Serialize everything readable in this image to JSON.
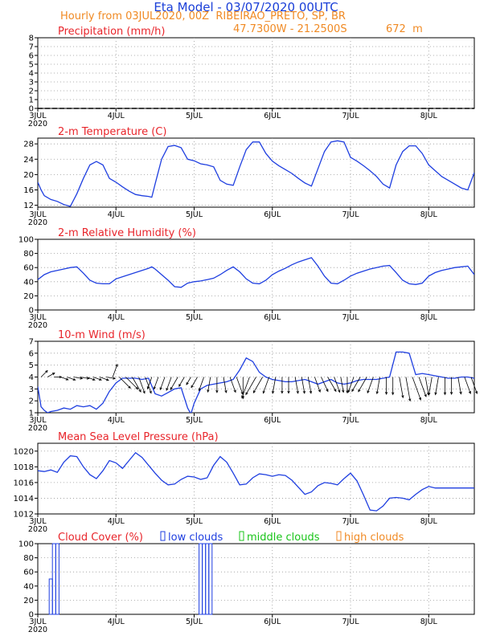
{
  "header": {
    "title": "Eta Model - 03/07/2020 00UTC",
    "subtitle": "Hourly from 03JUL2020, 00Z  RIBEIRAO_PRETO, SP, BR",
    "coordinates": "47.7300W - 21.2500S",
    "elevation": "672  m"
  },
  "x_axis": {
    "ticks": [
      {
        "hour": 0,
        "label": "3JUL",
        "sub": "2020"
      },
      {
        "hour": 24,
        "label": "4JUL",
        "sub": ""
      },
      {
        "hour": 48,
        "label": "5JUL",
        "sub": ""
      },
      {
        "hour": 72,
        "label": "6JUL",
        "sub": ""
      },
      {
        "hour": 96,
        "label": "7JUL",
        "sub": ""
      },
      {
        "hour": 120,
        "label": "8JUL",
        "sub": ""
      }
    ],
    "range_hours": [
      0,
      134
    ]
  },
  "colors": {
    "line": "#1f3fe0",
    "title": "#e8252b",
    "orange": "#f08a24",
    "green": "#19c419",
    "blue_legend": "#1f3fe0",
    "grid": "#999999",
    "zero_line": "#000000",
    "wind_arrow": "#000000"
  },
  "chart_data": [
    {
      "type": "line",
      "name": "precipitation",
      "title": "Precipitation (mm/h)",
      "ylim": [
        0,
        8
      ],
      "yticks": [
        0,
        1,
        2,
        3,
        4,
        5,
        6,
        7,
        8
      ],
      "x": [
        0,
        134
      ],
      "values": [
        0,
        0
      ]
    },
    {
      "type": "line",
      "name": "temperature",
      "title": "2-m Temperature (C)",
      "ylim": [
        11.5,
        29.5
      ],
      "yticks": [
        12,
        16,
        20,
        24,
        28
      ],
      "x": [
        0,
        1,
        2,
        4,
        6,
        8,
        10,
        12,
        14,
        16,
        18,
        20,
        22,
        24,
        26,
        28,
        30,
        32,
        34,
        35,
        36,
        38,
        40,
        42,
        44,
        46,
        48,
        50,
        52,
        54,
        56,
        58,
        60,
        62,
        64,
        66,
        68,
        70,
        72,
        74,
        76,
        78,
        80,
        82,
        84,
        86,
        88,
        90,
        92,
        94,
        96,
        98,
        100,
        102,
        104,
        106,
        108,
        110,
        112,
        114,
        116,
        118,
        120,
        122,
        124,
        126,
        128,
        130,
        132,
        134
      ],
      "values": [
        18,
        16,
        14.5,
        13.5,
        13,
        12.2,
        11.7,
        15,
        19,
        22.5,
        23.4,
        22.5,
        19,
        18,
        16.8,
        15.7,
        14.8,
        14.5,
        14.3,
        14.1,
        17.5,
        24,
        27.3,
        27.6,
        27,
        24,
        23.6,
        22.8,
        22.5,
        22,
        18.5,
        17.5,
        17.2,
        22,
        26.5,
        28.5,
        28.5,
        25.5,
        23.5,
        22.3,
        21.3,
        20.3,
        19,
        17.8,
        17,
        21.5,
        26,
        28.5,
        28.8,
        28.5,
        24.5,
        23.5,
        22.3,
        21,
        19.5,
        17.5,
        16.5,
        22.5,
        26,
        27.5,
        27.5,
        25.5,
        22.5,
        21,
        19.5,
        18.5,
        17.5,
        16.5,
        16,
        20.5
      ]
    },
    {
      "type": "line",
      "name": "relative_humidity",
      "title": "2-m Relative Humidity (%)",
      "ylim": [
        0,
        100
      ],
      "yticks": [
        0,
        20,
        40,
        60,
        80,
        100
      ],
      "x": [
        0,
        2,
        4,
        6,
        8,
        10,
        12,
        14,
        16,
        18,
        20,
        22,
        24,
        26,
        28,
        30,
        32,
        34,
        35,
        36,
        38,
        40,
        42,
        44,
        46,
        48,
        50,
        52,
        54,
        56,
        58,
        60,
        62,
        64,
        66,
        68,
        70,
        72,
        74,
        76,
        78,
        80,
        82,
        84,
        86,
        88,
        90,
        92,
        94,
        96,
        98,
        100,
        102,
        104,
        106,
        108,
        110,
        112,
        114,
        116,
        118,
        120,
        122,
        124,
        126,
        128,
        130,
        132,
        134
      ],
      "values": [
        43,
        50,
        54,
        56,
        58,
        60,
        61,
        52,
        42,
        38,
        37,
        37,
        44,
        47,
        50,
        53,
        56,
        59,
        61,
        58,
        50,
        42,
        33,
        32,
        38,
        40,
        41,
        43,
        45,
        50,
        56,
        61,
        54,
        44,
        38,
        37,
        42,
        50,
        55,
        59,
        64,
        68,
        71,
        74,
        62,
        48,
        38,
        37,
        42,
        48,
        52,
        55,
        58,
        60,
        62,
        63,
        53,
        42,
        37,
        36,
        38,
        48,
        53,
        56,
        58,
        60,
        61,
        62,
        50
      ]
    },
    {
      "type": "line",
      "name": "wind_speed",
      "title": "10-m Wind (m/s)",
      "ylim": [
        1,
        7
      ],
      "yticks": [
        1,
        2,
        3,
        4,
        5,
        6,
        7
      ],
      "x": [
        0,
        1,
        2,
        3,
        4,
        6,
        8,
        10,
        12,
        14,
        16,
        18,
        20,
        22,
        24,
        26,
        28,
        30,
        32,
        34,
        36,
        38,
        40,
        42,
        44,
        46,
        47,
        48,
        50,
        52,
        54,
        56,
        58,
        60,
        62,
        64,
        66,
        68,
        70,
        72,
        74,
        76,
        78,
        80,
        82,
        84,
        86,
        88,
        90,
        92,
        94,
        96,
        98,
        100,
        102,
        104,
        106,
        108,
        110,
        112,
        114,
        116,
        118,
        120,
        122,
        124,
        126,
        128,
        130,
        132,
        134
      ],
      "values": [
        3.2,
        1.5,
        1.2,
        1.0,
        1.1,
        1.2,
        1.4,
        1.3,
        1.6,
        1.5,
        1.6,
        1.3,
        1.8,
        2.8,
        3.5,
        3.9,
        3.9,
        3.9,
        3.8,
        3.9,
        2.6,
        2.4,
        2.7,
        3.0,
        3.1,
        1.4,
        0.9,
        1.8,
        3.0,
        3.3,
        3.4,
        3.5,
        3.6,
        3.8,
        4.6,
        5.6,
        5.3,
        4.4,
        4.0,
        3.8,
        3.7,
        3.6,
        3.6,
        3.7,
        3.8,
        3.6,
        3.4,
        3.6,
        3.8,
        3.5,
        3.4,
        3.5,
        3.7,
        3.8,
        3.8,
        3.8,
        3.9,
        4.0,
        6.1,
        6.1,
        6.0,
        4.2,
        4.3,
        4.2,
        4.1,
        4.0,
        3.9,
        3.9,
        4.0,
        4.0,
        3.9
      ],
      "arrow_baseline": 4.0,
      "wind_vectors": {
        "hours": [
          1,
          3,
          5,
          7,
          9,
          11,
          13,
          15,
          17,
          19,
          21,
          23,
          25,
          27,
          29,
          31,
          33,
          35,
          37,
          39,
          41,
          43,
          45,
          47,
          49,
          51,
          53,
          55,
          57,
          59,
          61,
          63,
          65,
          67,
          69,
          71,
          73,
          75,
          77,
          79,
          81,
          83,
          85,
          87,
          89,
          91,
          93,
          95,
          97,
          99,
          101,
          103,
          105,
          107,
          109,
          111,
          113,
          115,
          117,
          119,
          121,
          123,
          125,
          127,
          129,
          131,
          133
        ],
        "dir_deg": [
          45,
          60,
          90,
          110,
          110,
          100,
          100,
          110,
          110,
          110,
          100,
          20,
          135,
          135,
          150,
          160,
          160,
          200,
          200,
          200,
          200,
          210,
          210,
          210,
          210,
          200,
          190,
          180,
          170,
          160,
          160,
          180,
          200,
          210,
          210,
          200,
          190,
          180,
          180,
          170,
          170,
          170,
          160,
          155,
          150,
          160,
          170,
          180,
          200,
          210,
          210,
          200,
          190,
          180,
          180,
          170,
          170,
          160,
          160,
          170,
          190,
          190,
          180,
          180,
          170,
          160,
          160
        ],
        "speed": [
          1.5,
          1.2,
          1.0,
          1.2,
          1.4,
          1.4,
          1.5,
          1.4,
          1.4,
          1.6,
          1.5,
          2.8,
          3.5,
          3.9,
          3.9,
          3.9,
          3.9,
          2.5,
          2.6,
          2.8,
          3.0,
          3.1,
          2.0,
          1.4,
          2.4,
          3.1,
          3.3,
          3.4,
          3.5,
          3.6,
          4.2,
          5.2,
          5.4,
          4.8,
          4.2,
          3.9,
          3.7,
          3.6,
          3.6,
          3.7,
          3.7,
          3.7,
          3.5,
          3.5,
          3.7,
          3.6,
          3.4,
          3.5,
          3.6,
          3.7,
          3.8,
          3.8,
          3.8,
          3.9,
          4.0,
          5.0,
          6.0,
          6.0,
          5.0,
          4.2,
          4.2,
          4.1,
          4.0,
          3.9,
          3.9,
          4.0,
          4.0
        ]
      }
    },
    {
      "type": "line",
      "name": "mslp",
      "title": "Mean Sea Level Pressure (hPa)",
      "ylim": [
        1012,
        1021
      ],
      "yticks": [
        1012,
        1014,
        1016,
        1018,
        1020
      ],
      "x": [
        0,
        2,
        4,
        6,
        8,
        10,
        12,
        14,
        16,
        18,
        20,
        22,
        24,
        26,
        28,
        30,
        32,
        34,
        36,
        38,
        40,
        42,
        44,
        46,
        48,
        50,
        52,
        54,
        56,
        58,
        60,
        62,
        64,
        66,
        68,
        70,
        72,
        74,
        76,
        78,
        80,
        82,
        84,
        86,
        88,
        90,
        92,
        94,
        96,
        98,
        100,
        102,
        104,
        106,
        108,
        110,
        112,
        114,
        116,
        118,
        120,
        122,
        124,
        126,
        128,
        130,
        132,
        134
      ],
      "values": [
        1017.5,
        1017.4,
        1017.6,
        1017.3,
        1018.6,
        1019.4,
        1019.3,
        1018,
        1017,
        1016.5,
        1017.5,
        1018.8,
        1018.5,
        1017.8,
        1018.8,
        1019.8,
        1019.2,
        1018.2,
        1017.2,
        1016.3,
        1015.7,
        1015.8,
        1016.4,
        1016.8,
        1016.7,
        1016.4,
        1016.6,
        1018.2,
        1019.3,
        1018.6,
        1017.2,
        1015.7,
        1015.8,
        1016.6,
        1017.1,
        1017,
        1016.8,
        1017,
        1016.9,
        1016.3,
        1015.4,
        1014.5,
        1014.8,
        1015.6,
        1016,
        1015.9,
        1015.7,
        1016.5,
        1017.2,
        1016.2,
        1014.4,
        1012.5,
        1012.4,
        1013,
        1014,
        1014.1,
        1014,
        1013.8,
        1014.5,
        1015.1,
        1015.5,
        1015.3,
        1015.3,
        1015.3,
        1015.3,
        1015.3,
        1015.3,
        1015.3
      ]
    },
    {
      "type": "bar",
      "name": "cloud_cover",
      "title": "Cloud Cover (%)",
      "legend": [
        "low clouds",
        "middle clouds",
        "high clouds"
      ],
      "ylim": [
        0,
        100
      ],
      "yticks": [
        0,
        20,
        40,
        60,
        80,
        100
      ],
      "bars": [
        {
          "hour": 4,
          "value": 50,
          "layer": "low clouds"
        },
        {
          "hour": 5,
          "value": 100,
          "layer": "low clouds"
        },
        {
          "hour": 6,
          "value": 100,
          "layer": "low clouds"
        },
        {
          "hour": 50,
          "value": 100,
          "layer": "low clouds"
        },
        {
          "hour": 51,
          "value": 100,
          "layer": "low clouds"
        },
        {
          "hour": 52,
          "value": 100,
          "layer": "low clouds"
        },
        {
          "hour": 53,
          "value": 100,
          "layer": "low clouds"
        }
      ]
    }
  ]
}
